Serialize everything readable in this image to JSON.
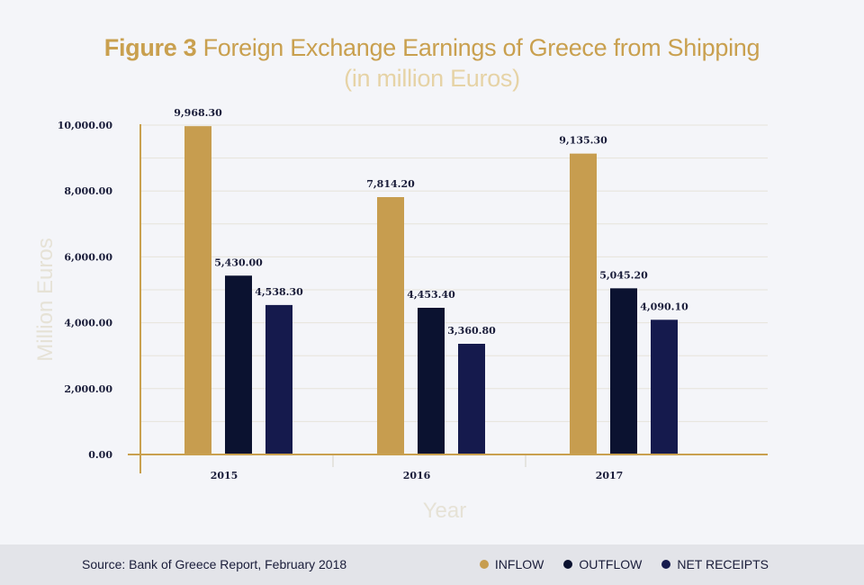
{
  "title": {
    "figure_label": "Figure 3",
    "main": "Foreign Exchange Earnings of Greece from Shipping",
    "subtitle": "(in million Euros)"
  },
  "footer": {
    "source": "Source: Bank of Greece Report, February 2018"
  },
  "colors": {
    "accent": "#c9a04f",
    "inflow": "#c79d4f",
    "outflow": "#0b1230",
    "net_receipts": "#151a4d",
    "axis_title": "#e6e2d6",
    "grid": "#e6e3da"
  },
  "chart_data": {
    "type": "bar",
    "title": "Figure 3 Foreign Exchange Earnings of Greece from Shipping",
    "subtitle": "(in million Euros)",
    "xlabel": "Year",
    "ylabel": "Million Euros",
    "categories": [
      "2015",
      "2016",
      "2017"
    ],
    "series": [
      {
        "name": "INFLOW",
        "values": [
          9968.3,
          7814.2,
          9135.3
        ],
        "labels": [
          "9,968.30",
          "7,814.20",
          "9,135.30"
        ]
      },
      {
        "name": "OUTFLOW",
        "values": [
          5430.0,
          4453.4,
          5045.2
        ],
        "labels": [
          "5,430.00",
          "4,453.40",
          "5,045.20"
        ]
      },
      {
        "name": "NET RECEIPTS",
        "values": [
          4538.3,
          3360.8,
          4090.1
        ],
        "labels": [
          "4,538.30",
          "3,360.80",
          "4,090.10"
        ]
      }
    ],
    "y_ticks": [
      0,
      2000,
      4000,
      6000,
      8000,
      10000
    ],
    "y_tick_labels": [
      "0.00",
      "2,000.00",
      "4,000.00",
      "6,000.00",
      "8,000.00",
      "10,000.00"
    ],
    "ylim": [
      0,
      10000
    ],
    "grid": true,
    "legend_placement": "bottom-right"
  }
}
